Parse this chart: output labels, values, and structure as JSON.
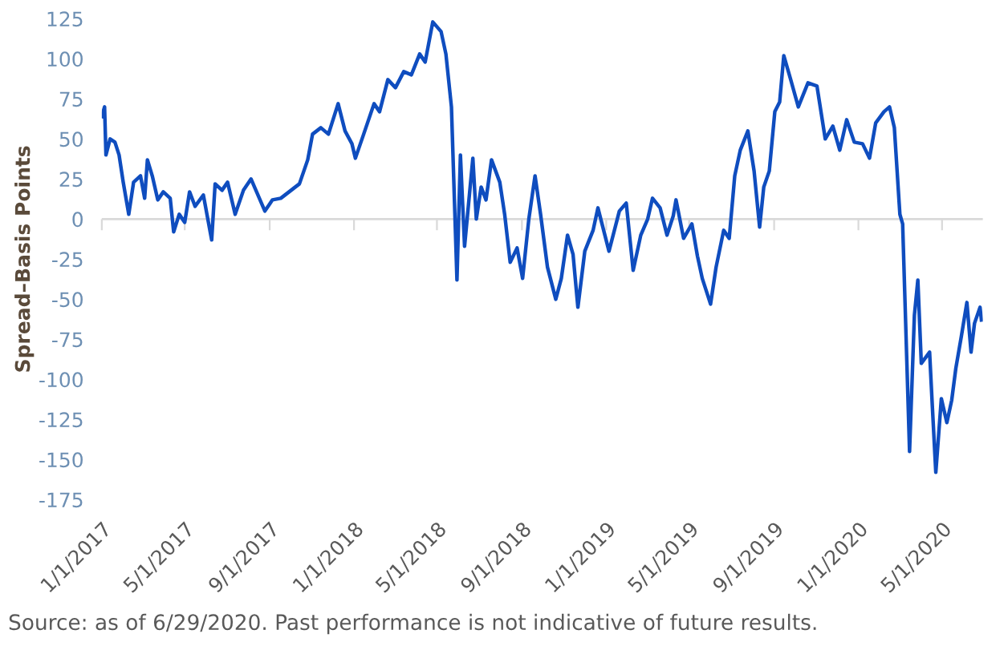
{
  "chart_data": {
    "type": "line",
    "ylabel": "Spread–Basis Points",
    "annotations": [
      "Source: as of 6/29/2020. Past performance is not indicative of future results."
    ],
    "x": [
      "2017-01-01",
      "2017-01-05",
      "2017-01-07",
      "2017-01-13",
      "2017-01-20",
      "2017-01-26",
      "2017-02-01",
      "2017-02-09",
      "2017-02-16",
      "2017-02-26",
      "2017-03-04",
      "2017-03-08",
      "2017-03-15",
      "2017-03-23",
      "2017-03-31",
      "2017-04-10",
      "2017-04-15",
      "2017-04-23",
      "2017-05-01",
      "2017-05-08",
      "2017-05-16",
      "2017-05-28",
      "2017-06-09",
      "2017-06-14",
      "2017-06-24",
      "2017-07-02",
      "2017-07-13",
      "2017-07-25",
      "2017-08-05",
      "2017-08-13",
      "2017-08-25",
      "2017-09-05",
      "2017-09-17",
      "2017-10-02",
      "2017-10-14",
      "2017-10-26",
      "2017-11-02",
      "2017-11-14",
      "2017-11-25",
      "2017-12-09",
      "2017-12-19",
      "2017-12-29",
      "2018-01-03",
      "2018-01-15",
      "2018-01-30",
      "2018-02-07",
      "2018-02-19",
      "2018-03-02",
      "2018-03-14",
      "2018-03-25",
      "2018-04-06",
      "2018-04-14",
      "2018-04-25",
      "2018-05-07",
      "2018-05-14",
      "2018-05-22",
      "2018-05-30",
      "2018-06-04",
      "2018-06-10",
      "2018-06-22",
      "2018-06-27",
      "2018-07-04",
      "2018-07-11",
      "2018-07-19",
      "2018-07-31",
      "2018-08-07",
      "2018-08-15",
      "2018-08-25",
      "2018-09-02",
      "2018-09-11",
      "2018-09-20",
      "2018-09-28",
      "2018-10-08",
      "2018-10-20",
      "2018-10-28",
      "2018-11-06",
      "2018-11-14",
      "2018-11-21",
      "2018-12-01",
      "2018-12-13",
      "2018-12-20",
      "2019-01-05",
      "2019-01-20",
      "2019-01-30",
      "2019-02-09",
      "2019-02-20",
      "2019-03-02",
      "2019-03-09",
      "2019-03-20",
      "2019-03-30",
      "2019-04-08",
      "2019-04-12",
      "2019-04-23",
      "2019-05-05",
      "2019-05-13",
      "2019-05-20",
      "2019-06-01",
      "2019-06-09",
      "2019-06-20",
      "2019-06-28",
      "2019-07-06",
      "2019-07-14",
      "2019-07-25",
      "2019-08-03",
      "2019-08-11",
      "2019-08-17",
      "2019-08-25",
      "2019-09-02",
      "2019-09-09",
      "2019-09-15",
      "2019-09-25",
      "2019-10-06",
      "2019-10-20",
      "2019-11-02",
      "2019-11-14",
      "2019-11-25",
      "2019-12-05",
      "2019-12-15",
      "2019-12-26",
      "2020-01-07",
      "2020-01-17",
      "2020-01-26",
      "2020-02-07",
      "2020-02-15",
      "2020-02-22",
      "2020-03-01",
      "2020-03-05",
      "2020-03-11",
      "2020-03-15",
      "2020-03-22",
      "2020-03-27",
      "2020-04-01",
      "2020-04-13",
      "2020-04-17",
      "2020-04-22",
      "2020-04-30",
      "2020-05-08",
      "2020-05-15",
      "2020-05-21",
      "2020-05-29",
      "2020-06-06",
      "2020-06-12",
      "2020-06-17",
      "2020-06-25",
      "2020-06-27"
    ],
    "series": [
      {
        "color": "#0f4dbf",
        "values": [
          64,
          70,
          40,
          50,
          48,
          40,
          23,
          3,
          23,
          27,
          13,
          37,
          27,
          12,
          17,
          13,
          -8,
          3,
          -2,
          17,
          8,
          15,
          -13,
          22,
          18,
          23,
          3,
          18,
          25,
          17,
          5,
          12,
          13,
          18,
          22,
          37,
          53,
          57,
          53,
          72,
          55,
          47,
          38,
          53,
          72,
          67,
          87,
          82,
          92,
          90,
          103,
          98,
          123,
          117,
          103,
          70,
          -38,
          40,
          -17,
          38,
          0,
          20,
          12,
          37,
          23,
          3,
          -27,
          -18,
          -37,
          0,
          27,
          3,
          -30,
          -50,
          -37,
          -10,
          -22,
          -55,
          -20,
          -7,
          7,
          -20,
          5,
          10,
          -32,
          -10,
          0,
          13,
          7,
          -10,
          2,
          12,
          -12,
          -3,
          -23,
          -37,
          -53,
          -30,
          -7,
          -12,
          27,
          43,
          55,
          30,
          -5,
          20,
          30,
          67,
          73,
          102,
          87,
          70,
          85,
          83,
          50,
          58,
          43,
          62,
          48,
          47,
          38,
          60,
          67,
          70,
          57,
          3,
          -3,
          -88,
          -145,
          -60,
          -38,
          -90,
          -83,
          -117,
          -158,
          -112,
          -127,
          -113,
          -93,
          -73,
          -52,
          -83,
          -65,
          -55,
          -63
        ]
      }
    ],
    "xlim": [
      "2017-01-01",
      "2020-06-29"
    ],
    "xticks": [
      {
        "value": "2017-01-01",
        "label": "1/1/2017"
      },
      {
        "value": "2017-05-01",
        "label": "5/1/2017"
      },
      {
        "value": "2017-09-01",
        "label": "9/1/2017"
      },
      {
        "value": "2018-01-01",
        "label": "1/1/2018"
      },
      {
        "value": "2018-05-01",
        "label": "5/1/2018"
      },
      {
        "value": "2018-09-01",
        "label": "9/1/2018"
      },
      {
        "value": "2019-01-01",
        "label": "1/1/2019"
      },
      {
        "value": "2019-05-01",
        "label": "5/1/2019"
      },
      {
        "value": "2019-09-01",
        "label": "9/1/2019"
      },
      {
        "value": "2020-01-01",
        "label": "1/1/2020"
      },
      {
        "value": "2020-05-01",
        "label": "5/1/2020"
      }
    ],
    "ylim": [
      -175,
      125
    ],
    "yticks": [
      -175,
      -150,
      -125,
      -100,
      -75,
      -50,
      -25,
      0,
      25,
      50,
      75,
      100,
      125
    ],
    "ref_lines": [
      {
        "axis": "y",
        "value": 0,
        "color": "#d9d9d9"
      }
    ],
    "grid": false,
    "marker": "none",
    "line_style": "solid"
  }
}
